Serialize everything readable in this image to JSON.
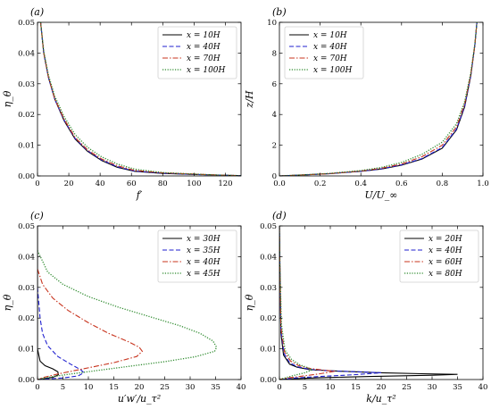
{
  "chart_data": [
    {
      "panel_label": "(a)",
      "type": "line",
      "xlabel": "f′",
      "ylabel": "η_θ",
      "xlim": [
        0,
        130
      ],
      "ylim": [
        0,
        0.05
      ],
      "xticks": [
        "0",
        "20",
        "40",
        "60",
        "80",
        "100",
        "120"
      ],
      "yticks": [
        "0.00",
        "0.01",
        "0.02",
        "0.03",
        "0.04",
        "0.05"
      ],
      "legend_position": "top-right",
      "series": [
        {
          "name": "x = 10H",
          "color": "#000000",
          "style": "solid",
          "points": [
            [
              2,
              0.05
            ],
            [
              4,
              0.04
            ],
            [
              7,
              0.032
            ],
            [
              11,
              0.025
            ],
            [
              17,
              0.018
            ],
            [
              24,
              0.012
            ],
            [
              32,
              0.008
            ],
            [
              41,
              0.005
            ],
            [
              51,
              0.0028
            ],
            [
              62,
              0.0015
            ],
            [
              80,
              0.0008
            ],
            [
              100,
              0.0005
            ],
            [
              115,
              0.0003
            ],
            [
              130,
              0.0001
            ]
          ]
        },
        {
          "name": "x = 40H",
          "color": "#1f1fcf",
          "style": "dashed",
          "points": [
            [
              2,
              0.05
            ],
            [
              4,
              0.04
            ],
            [
              7,
              0.032
            ],
            [
              11,
              0.025
            ],
            [
              17,
              0.0182
            ],
            [
              24,
              0.0122
            ],
            [
              32,
              0.0082
            ],
            [
              41,
              0.0052
            ],
            [
              51,
              0.003
            ],
            [
              62,
              0.0016
            ],
            [
              80,
              0.0009
            ],
            [
              100,
              0.0005
            ],
            [
              115,
              0.0003
            ],
            [
              130,
              0.0001
            ]
          ]
        },
        {
          "name": "x = 70H",
          "color": "#c8341e",
          "style": "dashdot",
          "points": [
            [
              2,
              0.05
            ],
            [
              4,
              0.04
            ],
            [
              7,
              0.0322
            ],
            [
              11,
              0.0252
            ],
            [
              17,
              0.0185
            ],
            [
              24,
              0.0125
            ],
            [
              32,
              0.0085
            ],
            [
              41,
              0.0055
            ],
            [
              51,
              0.0033
            ],
            [
              62,
              0.0018
            ],
            [
              80,
              0.001
            ],
            [
              100,
              0.0006
            ],
            [
              115,
              0.0003
            ],
            [
              130,
              0.0001
            ]
          ]
        },
        {
          "name": "x = 100H",
          "color": "#2e8b2e",
          "style": "dotted",
          "points": [
            [
              2,
              0.05
            ],
            [
              4,
              0.0405
            ],
            [
              7,
              0.0328
            ],
            [
              11,
              0.026
            ],
            [
              17,
              0.0193
            ],
            [
              24,
              0.0135
            ],
            [
              32,
              0.0093
            ],
            [
              41,
              0.0062
            ],
            [
              51,
              0.0039
            ],
            [
              62,
              0.0022
            ],
            [
              80,
              0.0011
            ],
            [
              100,
              0.0006
            ],
            [
              115,
              0.0003
            ],
            [
              130,
              0.0001
            ]
          ]
        }
      ]
    },
    {
      "panel_label": "(b)",
      "type": "line",
      "xlabel": "U/U_∞",
      "ylabel": "z/H",
      "xlim": [
        0,
        1.0
      ],
      "ylim": [
        0,
        10
      ],
      "xticks": [
        "0.0",
        "0.2",
        "0.4",
        "0.6",
        "0.8",
        "1.0"
      ],
      "yticks": [
        "0",
        "2",
        "4",
        "6",
        "8",
        "10"
      ],
      "legend_position": "top-left",
      "series": [
        {
          "name": "x = 10H",
          "color": "#000000",
          "style": "solid",
          "points": [
            [
              0,
              0
            ],
            [
              0.1,
              0.05
            ],
            [
              0.25,
              0.15
            ],
            [
              0.4,
              0.3
            ],
            [
              0.5,
              0.45
            ],
            [
              0.6,
              0.7
            ],
            [
              0.7,
              1.1
            ],
            [
              0.8,
              1.8
            ],
            [
              0.87,
              3
            ],
            [
              0.91,
              4.5
            ],
            [
              0.94,
              6.5
            ],
            [
              0.96,
              8.5
            ],
            [
              0.97,
              10
            ]
          ]
        },
        {
          "name": "x = 40H",
          "color": "#1f1fcf",
          "style": "dashed",
          "points": [
            [
              0,
              0
            ],
            [
              0.1,
              0.05
            ],
            [
              0.25,
              0.15
            ],
            [
              0.4,
              0.3
            ],
            [
              0.5,
              0.46
            ],
            [
              0.6,
              0.72
            ],
            [
              0.7,
              1.13
            ],
            [
              0.8,
              1.85
            ],
            [
              0.87,
              3.05
            ],
            [
              0.91,
              4.55
            ],
            [
              0.94,
              6.5
            ],
            [
              0.96,
              8.5
            ],
            [
              0.97,
              10
            ]
          ]
        },
        {
          "name": "x = 70H",
          "color": "#c8341e",
          "style": "dashdot",
          "points": [
            [
              0,
              0
            ],
            [
              0.1,
              0.05
            ],
            [
              0.25,
              0.15
            ],
            [
              0.4,
              0.32
            ],
            [
              0.5,
              0.5
            ],
            [
              0.6,
              0.78
            ],
            [
              0.7,
              1.25
            ],
            [
              0.8,
              2.0
            ],
            [
              0.87,
              3.2
            ],
            [
              0.91,
              4.7
            ],
            [
              0.94,
              6.6
            ],
            [
              0.96,
              8.5
            ],
            [
              0.97,
              10
            ]
          ]
        },
        {
          "name": "x = 100H",
          "color": "#2e8b2e",
          "style": "dotted",
          "points": [
            [
              0,
              0
            ],
            [
              0.1,
              0.06
            ],
            [
              0.25,
              0.17
            ],
            [
              0.4,
              0.35
            ],
            [
              0.5,
              0.55
            ],
            [
              0.6,
              0.88
            ],
            [
              0.7,
              1.4
            ],
            [
              0.8,
              2.2
            ],
            [
              0.87,
              3.4
            ],
            [
              0.91,
              4.85
            ],
            [
              0.94,
              6.7
            ],
            [
              0.96,
              8.6
            ],
            [
              0.97,
              10
            ]
          ]
        }
      ]
    },
    {
      "panel_label": "(c)",
      "type": "line",
      "xlabel": "u′w′/u_τ²",
      "ylabel": "η_θ",
      "xlim": [
        0,
        40
      ],
      "ylim": [
        0,
        0.05
      ],
      "xticks": [
        "0",
        "5",
        "10",
        "15",
        "20",
        "25",
        "30",
        "35",
        "40"
      ],
      "yticks": [
        "0.00",
        "0.01",
        "0.02",
        "0.03",
        "0.04",
        "0.05"
      ],
      "legend_position": "top-right",
      "series": [
        {
          "name": "x = 30H",
          "color": "#000000",
          "style": "solid",
          "points": [
            [
              0,
              0.05
            ],
            [
              0,
              0.01
            ],
            [
              0.5,
              0.006
            ],
            [
              1.5,
              0.0045
            ],
            [
              3,
              0.0035
            ],
            [
              4,
              0.0025
            ],
            [
              4.1,
              0.0015
            ],
            [
              3,
              0.0007
            ],
            [
              1,
              0.0002
            ],
            [
              0,
              0
            ]
          ]
        },
        {
          "name": "x = 35H",
          "color": "#1f1fcf",
          "style": "dashed",
          "points": [
            [
              0,
              0.03
            ],
            [
              0.5,
              0.02
            ],
            [
              1,
              0.015
            ],
            [
              2,
              0.011
            ],
            [
              4,
              0.0075
            ],
            [
              6.5,
              0.005
            ],
            [
              8.5,
              0.0032
            ],
            [
              9.1,
              0.0022
            ],
            [
              8,
              0.0012
            ],
            [
              5,
              0.0005
            ],
            [
              2,
              0.0002
            ],
            [
              0,
              0
            ]
          ]
        },
        {
          "name": "x = 40H",
          "color": "#c8341e",
          "style": "dashdot",
          "points": [
            [
              0,
              0.036
            ],
            [
              1,
              0.031
            ],
            [
              3,
              0.0265
            ],
            [
              6,
              0.0225
            ],
            [
              10,
              0.0185
            ],
            [
              14,
              0.015
            ],
            [
              18,
              0.0122
            ],
            [
              20,
              0.0105
            ],
            [
              20.6,
              0.0092
            ],
            [
              19.5,
              0.0075
            ],
            [
              15,
              0.0055
            ],
            [
              9,
              0.0035
            ],
            [
              4,
              0.0018
            ],
            [
              1,
              0.0006
            ],
            [
              0,
              0
            ]
          ]
        },
        {
          "name": "x = 45H",
          "color": "#2e8b2e",
          "style": "dotted",
          "points": [
            [
              0,
              0.042
            ],
            [
              2,
              0.035
            ],
            [
              5,
              0.031
            ],
            [
              10,
              0.027
            ],
            [
              16,
              0.0235
            ],
            [
              22,
              0.0205
            ],
            [
              28,
              0.0175
            ],
            [
              32,
              0.015
            ],
            [
              34.5,
              0.0125
            ],
            [
              35.2,
              0.0105
            ],
            [
              34.8,
              0.0092
            ],
            [
              31,
              0.0074
            ],
            [
              25,
              0.0058
            ],
            [
              18,
              0.0043
            ],
            [
              12,
              0.003
            ],
            [
              6,
              0.0017
            ],
            [
              2,
              0.0007
            ],
            [
              0,
              0
            ]
          ]
        }
      ]
    },
    {
      "panel_label": "(d)",
      "type": "line",
      "xlabel": "k/u_τ²",
      "ylabel": "η_θ",
      "xlim": [
        0,
        40
      ],
      "ylim": [
        0,
        0.05
      ],
      "xticks": [
        "0",
        "5",
        "10",
        "15",
        "20",
        "25",
        "30",
        "35",
        "40"
      ],
      "yticks": [
        "0.00",
        "0.01",
        "0.02",
        "0.03",
        "0.04",
        "0.05"
      ],
      "legend_position": "top-right",
      "series": [
        {
          "name": "x = 20H",
          "color": "#000000",
          "style": "solid",
          "points": [
            [
              0,
              0.05
            ],
            [
              0.1,
              0.035
            ],
            [
              0.3,
              0.015
            ],
            [
              0.8,
              0.008
            ],
            [
              2,
              0.005
            ],
            [
              3.5,
              0.004
            ],
            [
              6,
              0.0032
            ],
            [
              12,
              0.0027
            ],
            [
              20,
              0.0022
            ],
            [
              28,
              0.0019
            ],
            [
              35,
              0.0017
            ],
            [
              30,
              0.0014
            ],
            [
              18,
              0.001
            ],
            [
              8,
              0.0006
            ],
            [
              2,
              0.0002
            ],
            [
              0,
              0
            ]
          ]
        },
        {
          "name": "x = 40H",
          "color": "#1f1fcf",
          "style": "dashed",
          "points": [
            [
              0,
              0.05
            ],
            [
              0.1,
              0.035
            ],
            [
              0.3,
              0.016
            ],
            [
              0.9,
              0.0085
            ],
            [
              2,
              0.0055
            ],
            [
              3.5,
              0.0042
            ],
            [
              6,
              0.0033
            ],
            [
              10,
              0.0028
            ],
            [
              16,
              0.0025
            ],
            [
              20,
              0.0022
            ],
            [
              15,
              0.0016
            ],
            [
              8,
              0.001
            ],
            [
              3,
              0.0005
            ],
            [
              0,
              0
            ]
          ]
        },
        {
          "name": "x = 60H",
          "color": "#c8341e",
          "style": "dashdot",
          "points": [
            [
              0,
              0.05
            ],
            [
              0.1,
              0.035
            ],
            [
              0.3,
              0.017
            ],
            [
              1,
              0.009
            ],
            [
              2.2,
              0.006
            ],
            [
              3.8,
              0.0045
            ],
            [
              6,
              0.0036
            ],
            [
              9,
              0.003
            ],
            [
              11,
              0.0027
            ],
            [
              8,
              0.0019
            ],
            [
              4,
              0.001
            ],
            [
              1,
              0.0004
            ],
            [
              0,
              0
            ]
          ]
        },
        {
          "name": "x = 80H",
          "color": "#2e8b2e",
          "style": "dotted",
          "points": [
            [
              0,
              0.05
            ],
            [
              0.1,
              0.036
            ],
            [
              0.4,
              0.018
            ],
            [
              1.1,
              0.0095
            ],
            [
              2.4,
              0.0065
            ],
            [
              4,
              0.0048
            ],
            [
              5.5,
              0.0039
            ],
            [
              6.5,
              0.0032
            ],
            [
              5,
              0.0022
            ],
            [
              2.5,
              0.0012
            ],
            [
              0.8,
              0.0004
            ],
            [
              0,
              0
            ]
          ]
        }
      ]
    }
  ]
}
